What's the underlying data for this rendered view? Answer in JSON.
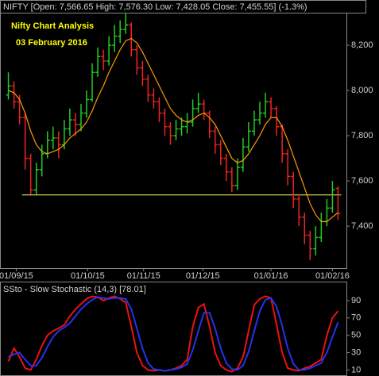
{
  "chart_data": [
    {
      "type": "ohlc",
      "title": "NIFTY [Open: 7,566.65  High: 7,576.30  Low: 7,428.05  Close: 7,455.55]  (-1.3%)",
      "annotations": [
        "Nifty Chart Analysis",
        "03 February 2016"
      ],
      "up_color": "#22cc22",
      "down_color": "#ee2222",
      "ohlc": [
        [
          7980,
          8080,
          7960,
          8020
        ],
        [
          8020,
          8040,
          7920,
          7950
        ],
        [
          7950,
          7980,
          7850,
          7880
        ],
        [
          7880,
          7900,
          7650,
          7700
        ],
        [
          7700,
          7720,
          7540,
          7560
        ],
        [
          7560,
          7680,
          7540,
          7650
        ],
        [
          7650,
          7760,
          7620,
          7720
        ],
        [
          7720,
          7820,
          7700,
          7780
        ],
        [
          7780,
          7840,
          7740,
          7790
        ],
        [
          7790,
          7820,
          7700,
          7760
        ],
        [
          7760,
          7870,
          7740,
          7830
        ],
        [
          7830,
          7920,
          7800,
          7870
        ],
        [
          7870,
          7900,
          7800,
          7850
        ],
        [
          7850,
          7940,
          7820,
          7900
        ],
        [
          7900,
          8000,
          7880,
          7960
        ],
        [
          7960,
          8120,
          7950,
          8080
        ],
        [
          8080,
          8190,
          8060,
          8150
        ],
        [
          8150,
          8180,
          8090,
          8130
        ],
        [
          8130,
          8240,
          8110,
          8200
        ],
        [
          8200,
          8290,
          8170,
          8240
        ],
        [
          8240,
          8310,
          8210,
          8270
        ],
        [
          8270,
          8340,
          8250,
          8290
        ],
        [
          8290,
          8300,
          8150,
          8180
        ],
        [
          8180,
          8200,
          8070,
          8100
        ],
        [
          8100,
          8130,
          8020,
          8050
        ],
        [
          8050,
          8070,
          7950,
          7980
        ],
        [
          7980,
          8010,
          7920,
          7950
        ],
        [
          7950,
          7970,
          7860,
          7900
        ],
        [
          7900,
          7920,
          7800,
          7840
        ],
        [
          7840,
          7860,
          7760,
          7800
        ],
        [
          7800,
          7870,
          7780,
          7830
        ],
        [
          7830,
          7880,
          7800,
          7840
        ],
        [
          7840,
          7900,
          7810,
          7860
        ],
        [
          7860,
          7960,
          7840,
          7920
        ],
        [
          7920,
          7990,
          7900,
          7940
        ],
        [
          7940,
          7960,
          7870,
          7900
        ],
        [
          7900,
          7910,
          7790,
          7820
        ],
        [
          7820,
          7840,
          7720,
          7760
        ],
        [
          7760,
          7780,
          7670,
          7700
        ],
        [
          7700,
          7720,
          7600,
          7640
        ],
        [
          7640,
          7660,
          7550,
          7580
        ],
        [
          7580,
          7700,
          7560,
          7660
        ],
        [
          7660,
          7790,
          7640,
          7750
        ],
        [
          7750,
          7860,
          7730,
          7820
        ],
        [
          7820,
          7910,
          7800,
          7870
        ],
        [
          7870,
          7950,
          7850,
          7900
        ],
        [
          7900,
          7990,
          7880,
          7950
        ],
        [
          7950,
          7970,
          7880,
          7920
        ],
        [
          7920,
          7930,
          7800,
          7840
        ],
        [
          7840,
          7850,
          7680,
          7720
        ],
        [
          7720,
          7740,
          7580,
          7620
        ],
        [
          7620,
          7640,
          7480,
          7520
        ],
        [
          7520,
          7540,
          7400,
          7440
        ],
        [
          7440,
          7460,
          7320,
          7360
        ],
        [
          7360,
          7380,
          7250,
          7300
        ],
        [
          7300,
          7400,
          7270,
          7350
        ],
        [
          7350,
          7460,
          7330,
          7420
        ],
        [
          7420,
          7520,
          7400,
          7480
        ],
        [
          7480,
          7600,
          7460,
          7560
        ],
        [
          7566.65,
          7576.3,
          7428.05,
          7455.55
        ]
      ],
      "ma": {
        "color": "#ff9900",
        "values": [
          8000,
          7990,
          7960,
          7900,
          7820,
          7760,
          7730,
          7720,
          7730,
          7740,
          7760,
          7790,
          7810,
          7830,
          7860,
          7910,
          7970,
          8020,
          8080,
          8130,
          8180,
          8220,
          8230,
          8210,
          8170,
          8120,
          8070,
          8020,
          7970,
          7920,
          7890,
          7870,
          7860,
          7870,
          7890,
          7900,
          7880,
          7850,
          7800,
          7750,
          7700,
          7680,
          7690,
          7720,
          7760,
          7800,
          7850,
          7880,
          7880,
          7840,
          7780,
          7710,
          7640,
          7570,
          7500,
          7450,
          7420,
          7420,
          7440,
          7460
        ]
      },
      "support": {
        "value": 7538,
        "from": 3,
        "to": 59,
        "color": "#ffff66"
      },
      "xlim": [
        -1.5,
        60.5
      ],
      "xticks": [
        {
          "value": 1.4,
          "label": "01/09/15"
        },
        {
          "value": 14.2,
          "label": "01/10/15"
        },
        {
          "value": 24.2,
          "label": "01/11/15"
        },
        {
          "value": 34.8,
          "label": "01/12/15"
        },
        {
          "value": 47,
          "label": "01/01/16"
        },
        {
          "value": 58,
          "label": "01/02/16"
        }
      ],
      "ylim": [
        7225,
        8400
      ],
      "yticks": [
        {
          "value": 7400,
          "label": "7,400"
        },
        {
          "value": 7600,
          "label": "7,600"
        },
        {
          "value": 7800,
          "label": "7,800"
        },
        {
          "value": 8000,
          "label": "8,000"
        },
        {
          "value": 8200,
          "label": "8,200"
        }
      ]
    },
    {
      "type": "line",
      "title": "SSto - Slow Stochastic (14,3) [78.01]",
      "series": [
        {
          "color": "#ee1111",
          "values": [
            20,
            35,
            25,
            12,
            10,
            22,
            38,
            50,
            55,
            58,
            62,
            72,
            80,
            86,
            92,
            95,
            94,
            90,
            93,
            95,
            92,
            88,
            60,
            30,
            15,
            10,
            9,
            10,
            9,
            10,
            12,
            15,
            22,
            60,
            82,
            86,
            60,
            30,
            15,
            10,
            8,
            12,
            25,
            55,
            85,
            92,
            95,
            93,
            62,
            30,
            12,
            10,
            9,
            12,
            14,
            18,
            22,
            50,
            70,
            78.01
          ]
        },
        {
          "color": "#2233ee",
          "values": [
            25,
            28,
            30,
            22,
            15,
            15,
            24,
            37,
            48,
            55,
            59,
            64,
            72,
            80,
            86,
            91,
            94,
            93,
            92,
            93,
            93,
            92,
            80,
            58,
            35,
            18,
            11,
            10,
            9,
            10,
            11,
            13,
            17,
            33,
            55,
            76,
            76,
            58,
            35,
            18,
            11,
            10,
            15,
            31,
            55,
            78,
            91,
            93,
            83,
            61,
            35,
            17,
            10,
            10,
            12,
            15,
            18,
            30,
            48,
            65
          ]
        }
      ],
      "ylim": [
        3,
        111
      ],
      "yticks": [
        10,
        30,
        50,
        70,
        90
      ]
    }
  ]
}
